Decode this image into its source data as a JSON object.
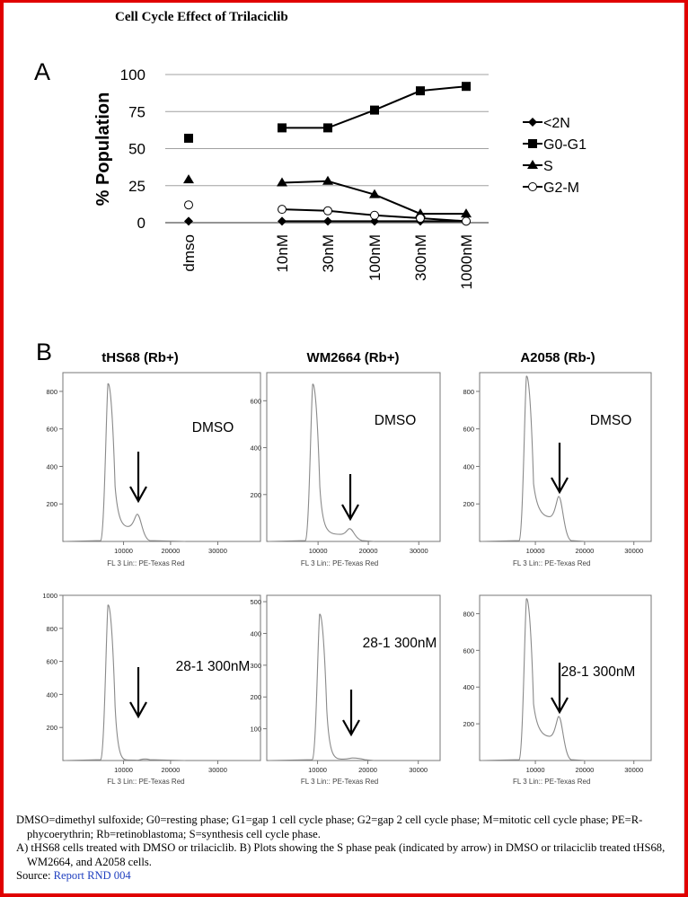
{
  "title": "Cell Cycle Effect of Trilaciclib",
  "chart_data": [
    {
      "type": "line",
      "panel_label": "A",
      "ylabel": "% Population",
      "ylim": [
        0,
        100
      ],
      "y_ticks": [
        0,
        25,
        50,
        75,
        100
      ],
      "categories": [
        "dmso",
        "10nM",
        "30nM",
        "100nM",
        "300nM",
        "1000nM"
      ],
      "grid": true,
      "legend_position": "right",
      "series": [
        {
          "name": "<2N",
          "marker": "diamond",
          "values": [
            1,
            1,
            1,
            1,
            1,
            1
          ]
        },
        {
          "name": "G0-G1",
          "marker": "square",
          "values": [
            57,
            64,
            64,
            76,
            89,
            92
          ]
        },
        {
          "name": "S",
          "marker": "triangle",
          "values": [
            29,
            27,
            28,
            19,
            6,
            6
          ]
        },
        {
          "name": "G2-M",
          "marker": "open-circle",
          "values": [
            12,
            9,
            8,
            5,
            3,
            1
          ]
        }
      ]
    },
    {
      "type": "histogram",
      "panel_label": "B",
      "columns": [
        "tHS68 (Rb+)",
        "WM2664 (Rb+)",
        "A2058 (Rb-)"
      ],
      "row_labels": [
        "DMSO",
        "28-1 300nM"
      ],
      "x_axis_label": "FL 3 Lin:: PE-Texas Red",
      "x_ticks": [
        "10000",
        "20000",
        "30000"
      ],
      "plots": [
        {
          "column": "tHS68 (Rb+)",
          "condition": "DMSO",
          "y_ticks": [
            "200",
            "400",
            "600",
            "800"
          ],
          "ymax": 900,
          "g1_peak": 840,
          "s_phase": 145
        },
        {
          "column": "WM2664 (Rb+)",
          "condition": "DMSO",
          "y_ticks": [
            "200",
            "400",
            "600"
          ],
          "ymax": 720,
          "g1_peak": 670,
          "s_phase": 55
        },
        {
          "column": "A2058 (Rb-)",
          "condition": "DMSO",
          "y_ticks": [
            "200",
            "400",
            "600",
            "800"
          ],
          "ymax": 900,
          "g1_peak": 880,
          "s_phase": 240
        },
        {
          "column": "tHS68 (Rb+)",
          "condition": "28-1 300nM",
          "y_ticks": [
            "200",
            "400",
            "600",
            "800",
            "1000"
          ],
          "ymax": 1000,
          "g1_peak": 940,
          "s_phase": 2
        },
        {
          "column": "WM2664 (Rb+)",
          "condition": "28-1 300nM",
          "y_ticks": [
            "100",
            "200",
            "300",
            "400",
            "500"
          ],
          "ymax": 520,
          "g1_peak": 460,
          "s_phase": 8
        },
        {
          "column": "A2058 (Rb-)",
          "condition": "28-1 300nM",
          "y_ticks": [
            "200",
            "400",
            "600",
            "800"
          ],
          "ymax": 900,
          "g1_peak": 880,
          "s_phase": 240
        }
      ]
    }
  ],
  "caption": {
    "abbreviations": "DMSO=dimethyl sulfoxide; G0=resting phase; G1=gap 1 cell cycle phase; G2=gap 2 cell cycle phase; M=mitotic cell cycle phase; PE=R-phycoerythrin; Rb=retinoblastoma; S=synthesis cell cycle phase.",
    "legend": "A) tHS68 cells treated with DMSO or trilaciclib. B) Plots showing the S phase peak (indicated by arrow) in DMSO or trilaciclib treated tHS68, WM2664, and A2058 cells.",
    "source_label": "Source:",
    "source_link": "Report RND 004"
  },
  "colors": {
    "border": "#e00000",
    "link": "#1f3fbf",
    "grid": "#a0a0a0",
    "histogram_line": "#8a8a8a"
  }
}
